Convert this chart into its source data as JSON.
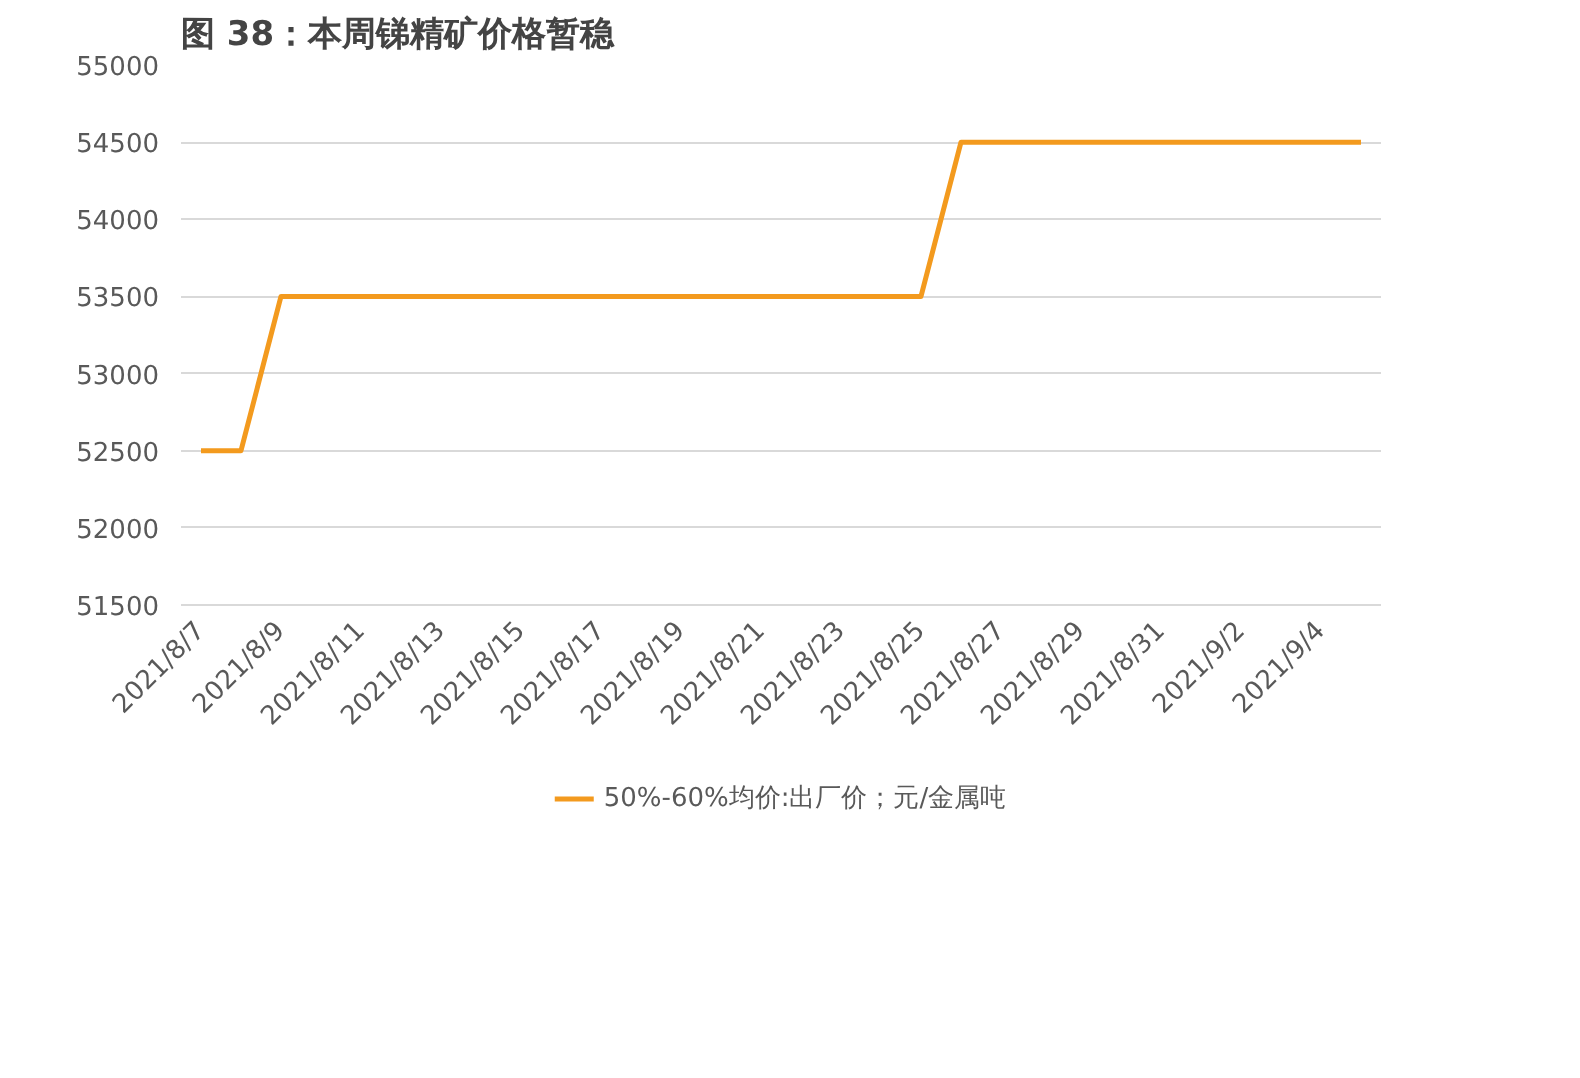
{
  "chart_data": {
    "type": "line",
    "title": "图 38：本周锑精矿价格暂稳",
    "categories": [
      "2021/8/7",
      null,
      "2021/8/9",
      null,
      "2021/8/11",
      null,
      "2021/8/13",
      null,
      "2021/8/15",
      null,
      "2021/8/17",
      null,
      "2021/8/19",
      null,
      "2021/8/21",
      null,
      "2021/8/23",
      null,
      "2021/8/25",
      null,
      "2021/8/27",
      null,
      "2021/8/29",
      null,
      "2021/8/31",
      null,
      "2021/9/2",
      null,
      "2021/9/4",
      null
    ],
    "series": [
      {
        "name": "50%-60%均价:出厂价；元/金属吨",
        "color": "#f39a1e",
        "values": [
          52500,
          52500,
          53500,
          53500,
          53500,
          53500,
          53500,
          53500,
          53500,
          53500,
          53500,
          53500,
          53500,
          53500,
          53500,
          53500,
          53500,
          53500,
          53500,
          54500,
          54500,
          54500,
          54500,
          54500,
          54500,
          54500,
          54500,
          54500,
          54500,
          54500
        ]
      }
    ],
    "ylim": [
      51500,
      55000
    ],
    "yticks": [
      51500,
      52000,
      52500,
      53000,
      53500,
      54000,
      54500,
      55000
    ],
    "grid": "y",
    "legend": "bottom",
    "marker": "none",
    "line_style": "solid"
  }
}
